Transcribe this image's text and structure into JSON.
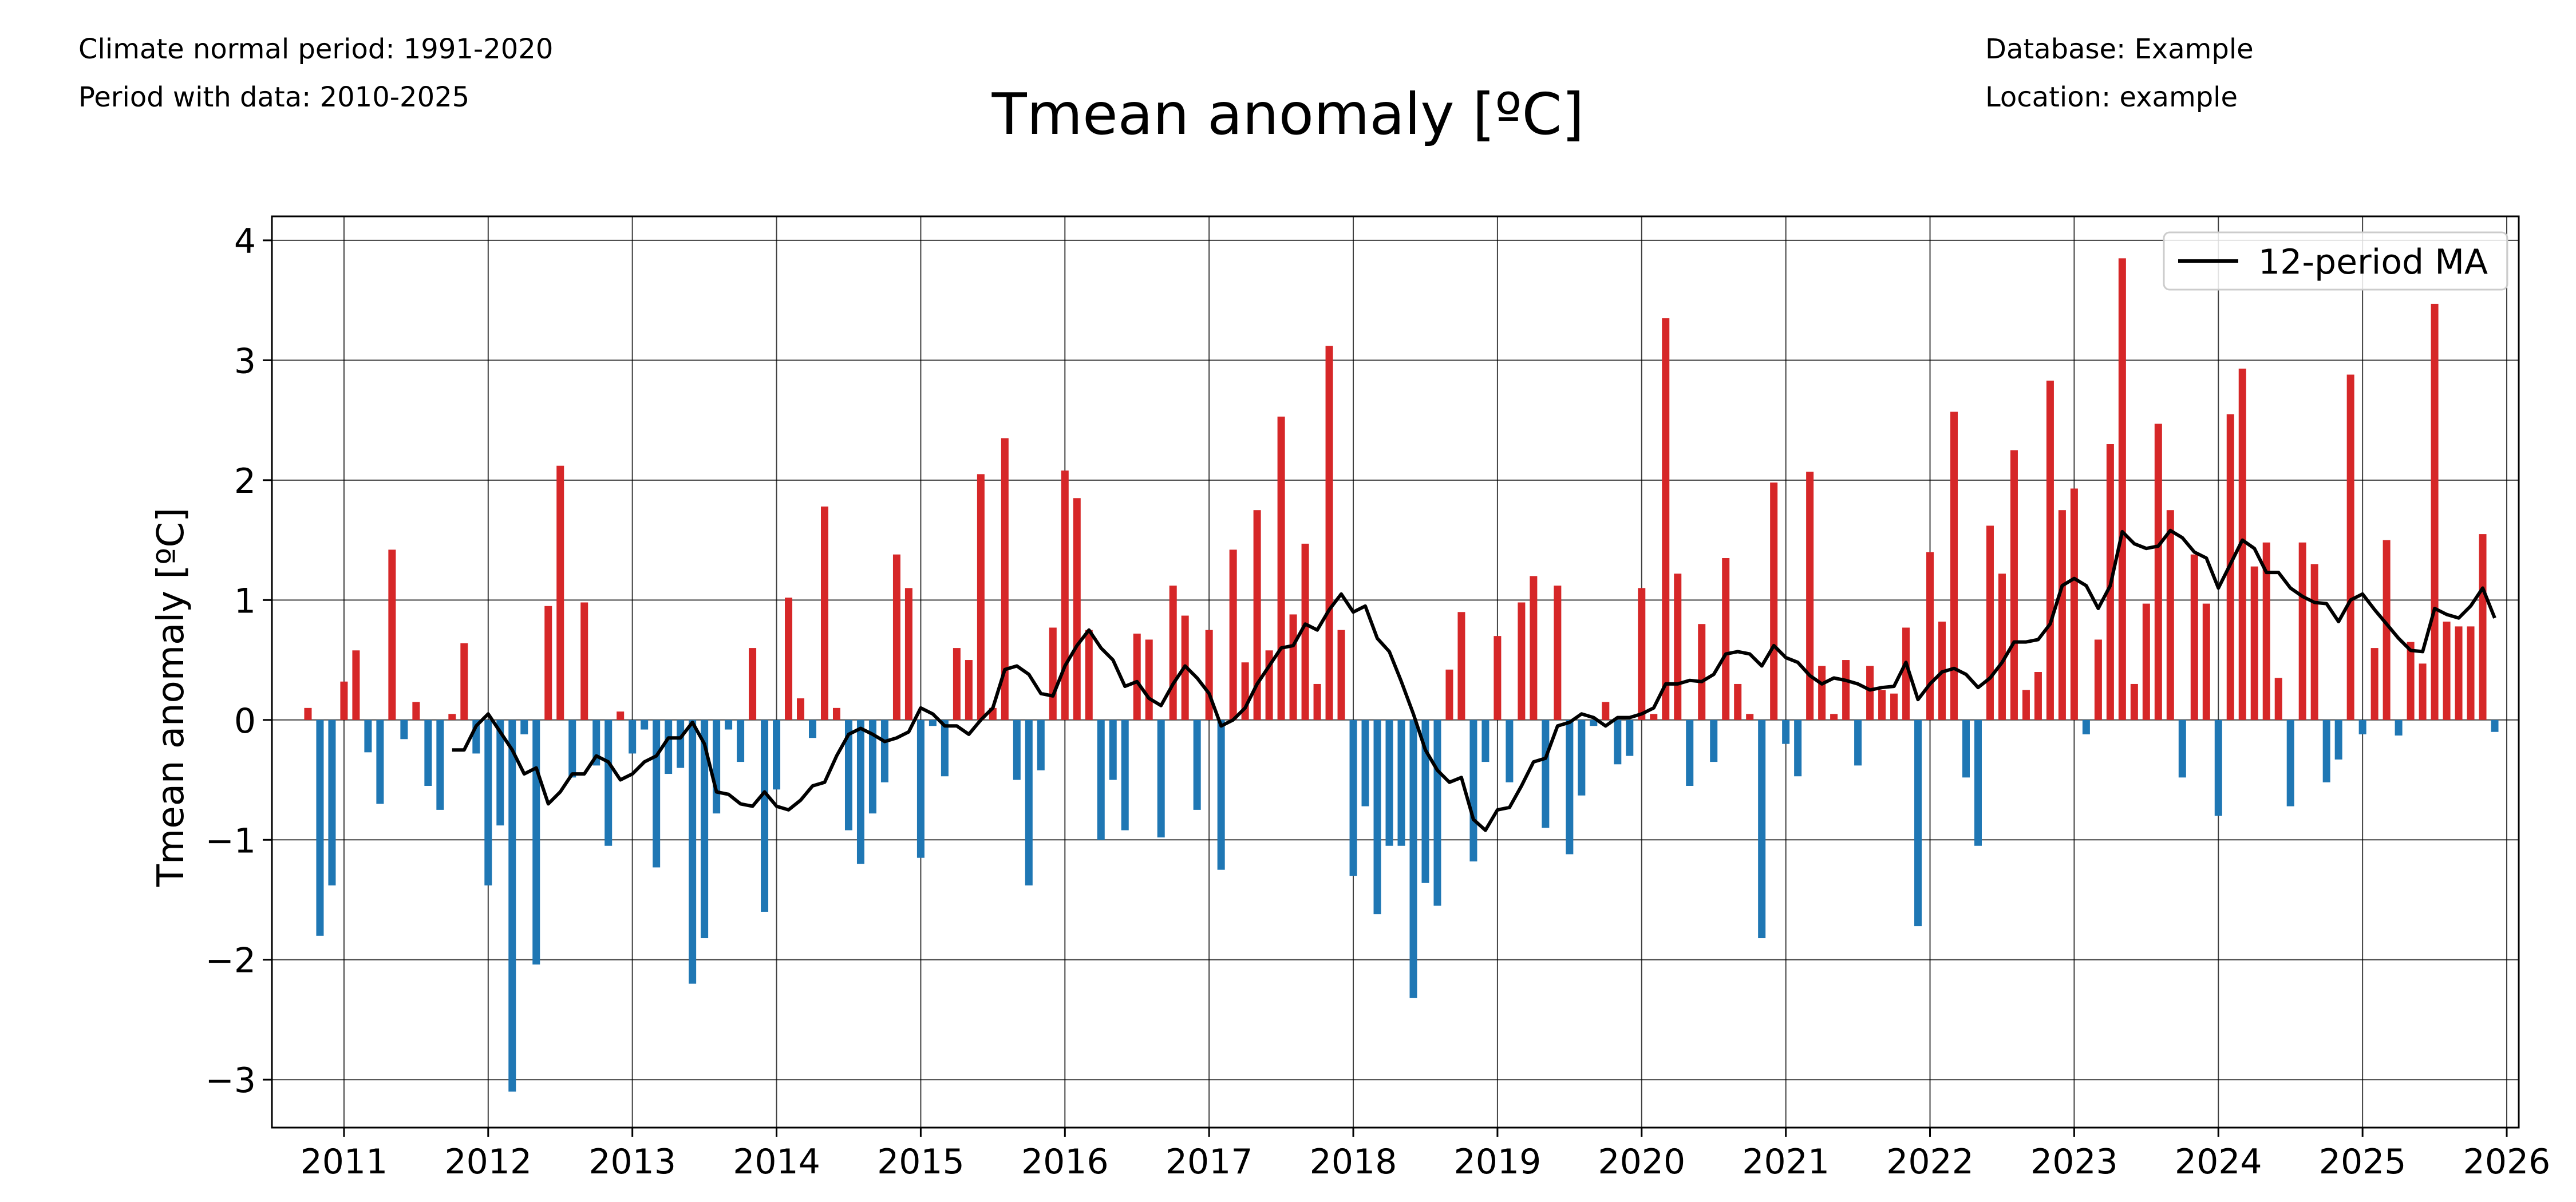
{
  "header": {
    "climate_normal": "Climate normal period: 1991-2020",
    "period_with_data": "Period with data: 2010-2025",
    "database": "Database: Example",
    "location": "Location: example"
  },
  "colors": {
    "positive": "#d62728",
    "negative": "#1f77b4",
    "ma_line": "#000000",
    "grid": "#000000"
  },
  "chart_data": {
    "type": "bar",
    "title": "Tmean anomaly [ºC]",
    "xlabel": "",
    "ylabel": "Tmean anomaly [ºC]",
    "ylim": [
      -3.4,
      4.2
    ],
    "yticks": [
      -3,
      -2,
      -1,
      0,
      1,
      2,
      3,
      4
    ],
    "ytick_labels": [
      "−3",
      "−2",
      "−1",
      "0",
      "1",
      "2",
      "3",
      "4"
    ],
    "xticks": [
      "2011",
      "2012",
      "2013",
      "2014",
      "2015",
      "2016",
      "2017",
      "2018",
      "2019",
      "2020",
      "2021",
      "2022",
      "2023",
      "2024",
      "2025",
      "2026"
    ],
    "grid": true,
    "legend": {
      "position": "top-right",
      "entries": [
        "12-period MA"
      ]
    },
    "start_month": "2010-10",
    "x_range": [
      "2010-07",
      "2026-02"
    ],
    "series": [
      {
        "name": "Tmean anomaly",
        "values": [
          0.1,
          -1.8,
          -1.38,
          0.32,
          0.58,
          -0.27,
          -0.7,
          1.42,
          -0.16,
          0.15,
          -0.55,
          -0.75,
          0.05,
          0.64,
          -0.28,
          -1.38,
          -0.88,
          -3.1,
          -0.12,
          -2.04,
          0.95,
          2.12,
          -0.48,
          0.98,
          -0.38,
          -1.05,
          0.07,
          -0.28,
          -0.08,
          -1.23,
          -0.45,
          -0.4,
          -2.2,
          -1.82,
          -0.78,
          -0.08,
          -0.35,
          0.6,
          -1.6,
          -0.58,
          1.02,
          0.18,
          -0.15,
          1.78,
          0.1,
          -0.92,
          -1.2,
          -0.78,
          -0.52,
          1.38,
          1.1,
          -1.15,
          -0.05,
          -0.47,
          0.6,
          0.5,
          2.05,
          0.1,
          2.35,
          -0.5,
          -1.38,
          -0.42,
          0.77,
          2.08,
          1.85,
          0.75,
          -1.0,
          -0.5,
          -0.92,
          0.72,
          0.67,
          -0.98,
          1.12,
          0.87,
          -0.75,
          0.75,
          -1.25,
          1.42,
          0.48,
          1.75,
          0.58,
          2.53,
          0.88,
          1.47,
          0.3,
          3.12,
          0.75,
          -1.3,
          -0.72,
          -1.62,
          -1.05,
          -1.05,
          -2.32,
          -1.36,
          -1.55,
          0.42,
          0.9,
          -1.18,
          -0.35,
          0.7,
          -0.52,
          0.98,
          1.2,
          -0.9,
          1.12,
          -1.12,
          -0.63,
          -0.05,
          0.15,
          -0.37,
          -0.3,
          1.1,
          0.05,
          3.35,
          1.22,
          -0.55,
          0.8,
          -0.35,
          1.35,
          0.3,
          0.05,
          -1.82,
          1.98,
          -0.2,
          -0.47,
          2.07,
          0.45,
          0.05,
          0.5,
          -0.38,
          0.45,
          0.25,
          0.22,
          0.77,
          -1.72,
          1.4,
          0.82,
          2.57,
          -0.48,
          -1.05,
          1.62,
          1.22,
          2.25,
          0.25,
          0.4,
          2.83,
          1.75,
          1.93,
          -0.12,
          0.67,
          2.3,
          3.85,
          0.3,
          0.97,
          2.47,
          1.75,
          -0.48,
          1.38,
          0.97,
          -0.8,
          2.55,
          2.93,
          1.28,
          1.48,
          0.35,
          -0.72,
          1.48,
          1.3,
          -0.52,
          -0.33,
          2.88,
          -0.12,
          0.6,
          1.5,
          -0.13,
          0.65,
          0.47,
          3.47,
          0.82,
          0.78,
          0.78,
          1.55,
          -0.1
        ]
      },
      {
        "name": "12-period MA",
        "values": [
          -0.25,
          -0.25,
          -0.05,
          0.05,
          -0.1,
          -0.25,
          -0.45,
          -0.4,
          -0.7,
          -0.6,
          -0.45,
          -0.45,
          -0.3,
          -0.35,
          -0.5,
          -0.45,
          -0.35,
          -0.3,
          -0.15,
          -0.15,
          -0.02,
          -0.2,
          -0.6,
          -0.62,
          -0.7,
          -0.72,
          -0.6,
          -0.72,
          -0.75,
          -0.67,
          -0.55,
          -0.52,
          -0.3,
          -0.12,
          -0.07,
          -0.12,
          -0.18,
          -0.15,
          -0.1,
          0.1,
          0.05,
          -0.05,
          -0.05,
          -0.12,
          0.0,
          0.1,
          0.42,
          0.45,
          0.38,
          0.22,
          0.2,
          0.45,
          0.62,
          0.75,
          0.6,
          0.5,
          0.28,
          0.32,
          0.18,
          0.12,
          0.3,
          0.45,
          0.35,
          0.22,
          -0.05,
          0.0,
          0.1,
          0.3,
          0.45,
          0.6,
          0.62,
          0.8,
          0.75,
          0.92,
          1.05,
          0.9,
          0.95,
          0.68,
          0.57,
          0.32,
          0.05,
          -0.25,
          -0.42,
          -0.52,
          -0.48,
          -0.83,
          -0.92,
          -0.75,
          -0.73,
          -0.55,
          -0.35,
          -0.32,
          -0.05,
          -0.02,
          0.05,
          0.02,
          -0.05,
          0.02,
          0.02,
          0.05,
          0.1,
          0.3,
          0.3,
          0.33,
          0.32,
          0.38,
          0.55,
          0.57,
          0.55,
          0.45,
          0.62,
          0.52,
          0.48,
          0.37,
          0.3,
          0.35,
          0.33,
          0.3,
          0.25,
          0.27,
          0.28,
          0.48,
          0.17,
          0.3,
          0.4,
          0.43,
          0.38,
          0.27,
          0.35,
          0.48,
          0.65,
          0.65,
          0.67,
          0.8,
          1.12,
          1.18,
          1.12,
          0.93,
          1.12,
          1.57,
          1.47,
          1.43,
          1.45,
          1.58,
          1.52,
          1.4,
          1.35,
          1.1,
          1.3,
          1.5,
          1.43,
          1.23,
          1.23,
          1.1,
          1.03,
          0.98,
          0.97,
          0.82,
          1.0,
          1.05,
          0.92,
          0.8,
          0.68,
          0.58,
          0.57,
          0.93,
          0.88,
          0.85,
          0.95,
          1.1,
          0.85
        ]
      }
    ]
  }
}
